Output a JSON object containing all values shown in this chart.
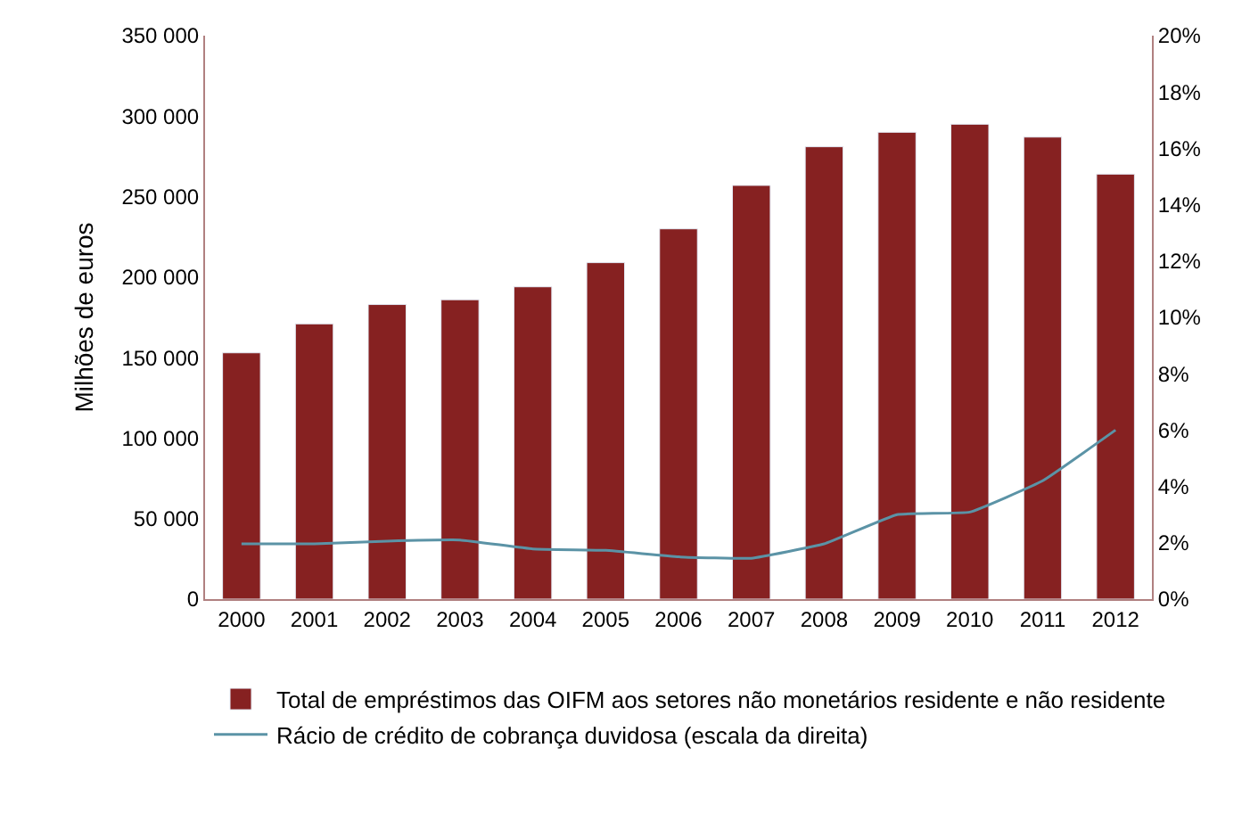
{
  "chart_data": {
    "type": "bar",
    "ylabel": "Milhões de euros",
    "categories": [
      "2000",
      "2001",
      "2002",
      "2003",
      "2004",
      "2005",
      "2006",
      "2007",
      "2008",
      "2009",
      "2010",
      "2011",
      "2012"
    ],
    "series": [
      {
        "name": "Total de empréstimos das OIFM aos setores não monetários residente e não residente",
        "color": "#862121",
        "values": [
          153000,
          171000,
          183000,
          186000,
          194000,
          209000,
          230000,
          257000,
          281000,
          290000,
          295000,
          287000,
          264000
        ]
      },
      {
        "name": "Rácio de crédito de cobrança duvidosa (escala da direita)",
        "type": "line",
        "axis": "y2",
        "color": "#5b93a6",
        "values": [
          1.96,
          1.96,
          2.06,
          2.1,
          1.78,
          1.73,
          1.5,
          1.45,
          1.96,
          3.0,
          3.09,
          4.2,
          6.0
        ]
      }
    ],
    "ylim": [
      0,
      350000
    ],
    "yticks": [
      {
        "value": 0,
        "label": "0"
      },
      {
        "value": 50000,
        "label": "50 000"
      },
      {
        "value": 100000,
        "label": "100 000"
      },
      {
        "value": 150000,
        "label": "150 000"
      },
      {
        "value": 200000,
        "label": "200 000"
      },
      {
        "value": 250000,
        "label": "250 000"
      },
      {
        "value": 300000,
        "label": "300 000"
      },
      {
        "value": 350000,
        "label": "350 000"
      }
    ],
    "y2lim": [
      0,
      20
    ],
    "y2ticks": [
      {
        "value": 0,
        "label": "0%"
      },
      {
        "value": 2,
        "label": "2%"
      },
      {
        "value": 4,
        "label": "4%"
      },
      {
        "value": 6,
        "label": "6%"
      },
      {
        "value": 8,
        "label": "8%"
      },
      {
        "value": 10,
        "label": "10%"
      },
      {
        "value": 12,
        "label": "12%"
      },
      {
        "value": 14,
        "label": "14%"
      },
      {
        "value": 16,
        "label": "16%"
      },
      {
        "value": 18,
        "label": "18%"
      },
      {
        "value": 20,
        "label": "20%"
      }
    ],
    "legend": "bottom",
    "marker": "none",
    "line_style": "solid"
  }
}
